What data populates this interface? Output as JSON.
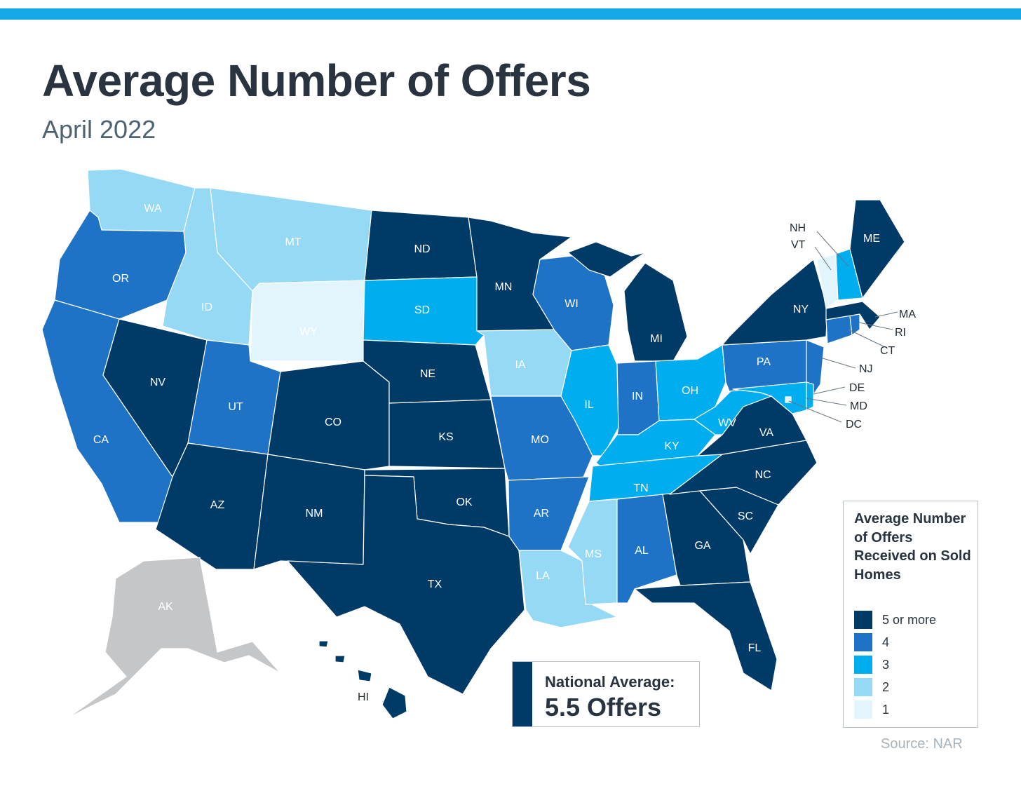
{
  "title": "Average Number of Offers",
  "subtitle": "April 2022",
  "colors": {
    "top_bar": "#15a9e8",
    "5_or_more": "#003a66",
    "4": "#1f73c7",
    "3": "#00adef",
    "2": "#96d9f5",
    "1": "#e2f5fc",
    "no_data": "#c4c6c8"
  },
  "states": {
    "WA": "2",
    "OR": "4",
    "CA": "4",
    "NV": "5+",
    "ID": "2",
    "MT": "2",
    "WY": "1",
    "UT": "4",
    "AZ": "5+",
    "NM": "5+",
    "CO": "5+",
    "ND": "5+",
    "SD": "3",
    "NE": "5+",
    "KS": "5+",
    "OK": "5+",
    "TX": "5+",
    "MN": "5+",
    "IA": "2",
    "MO": "4",
    "AR": "4",
    "LA": "2",
    "WI": "4",
    "IL": "3",
    "MI": "5+",
    "IN": "4",
    "OH": "3",
    "KY": "3",
    "TN": "3",
    "MS": "2",
    "AL": "4",
    "GA": "5+",
    "FL": "5+",
    "SC": "5+",
    "NC": "5+",
    "VA": "5+",
    "WV": "3",
    "PA": "4",
    "NY": "5+",
    "ME": "5+",
    "NH": "3",
    "VT": "1",
    "MA": "5+",
    "RI": "4",
    "CT": "4",
    "NJ": "4",
    "DE": "3",
    "MD": "3",
    "DC": "1",
    "AK": "no data",
    "HI": "5+"
  },
  "labels": {
    "WA": "WA",
    "OR": "OR",
    "CA": "CA",
    "NV": "NV",
    "ID": "ID",
    "MT": "MT",
    "WY": "WY",
    "UT": "UT",
    "AZ": "AZ",
    "NM": "NM",
    "CO": "CO",
    "ND": "ND",
    "SD": "SD",
    "NE": "NE",
    "KS": "KS",
    "OK": "OK",
    "TX": "TX",
    "MN": "MN",
    "IA": "IA",
    "MO": "MO",
    "AR": "AR",
    "LA": "LA",
    "WI": "WI",
    "IL": "IL",
    "MI": "MI",
    "IN": "IN",
    "OH": "OH",
    "KY": "KY",
    "TN": "TN",
    "MS": "MS",
    "AL": "AL",
    "GA": "GA",
    "FL": "FL",
    "SC": "SC",
    "NC": "NC",
    "VA": "VA",
    "WV": "WV",
    "PA": "PA",
    "NY": "NY",
    "ME": "ME",
    "NH": "NH",
    "VT": "VT",
    "MA": "MA",
    "RI": "RI",
    "CT": "CT",
    "NJ": "NJ",
    "DE": "DE",
    "MD": "MD",
    "DC": "DC",
    "AK": "AK",
    "HI": "HI"
  },
  "national_average": {
    "label": "National Average:",
    "value": "5.5 Offers"
  },
  "legend": {
    "title": "Average Number of Offers Received on Sold Homes",
    "items": [
      {
        "label": "5 or more",
        "color": "#003a66"
      },
      {
        "label": "4",
        "color": "#1f73c7"
      },
      {
        "label": "3",
        "color": "#00adef"
      },
      {
        "label": "2",
        "color": "#96d9f5"
      },
      {
        "label": "1",
        "color": "#e2f5fc"
      }
    ]
  },
  "source": "Source:  NAR"
}
